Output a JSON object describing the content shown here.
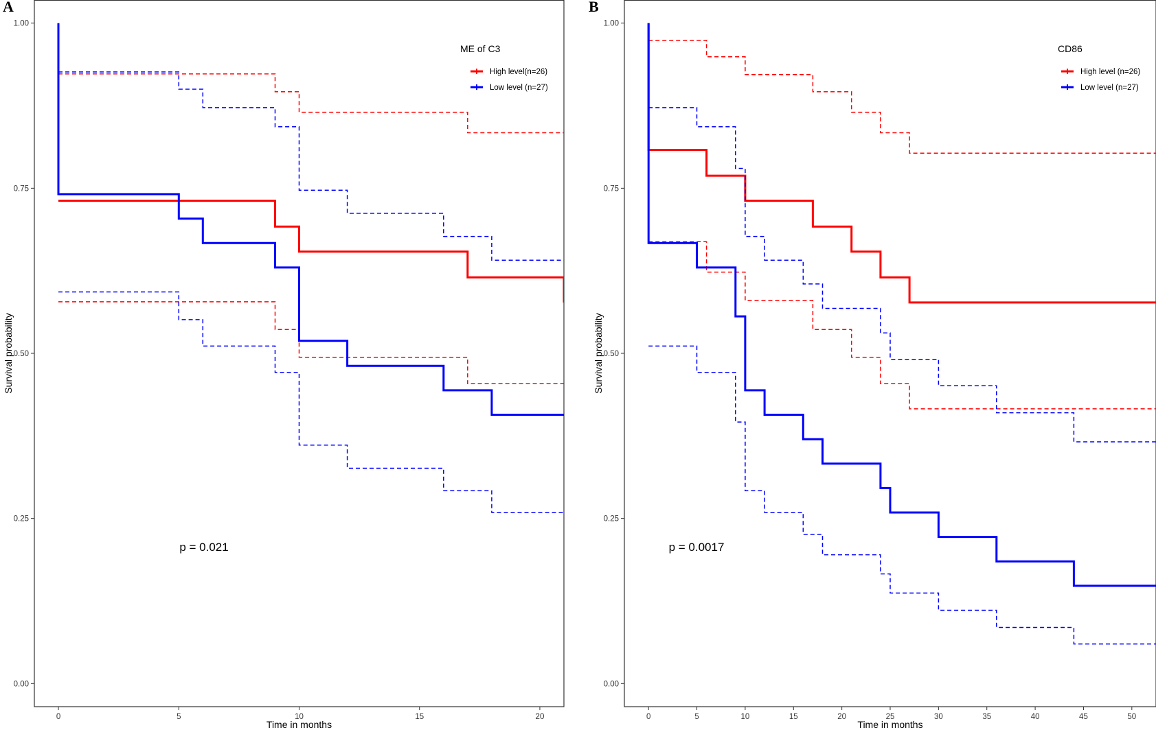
{
  "chart_data": [
    {
      "type": "line",
      "panel_label": "A",
      "xlabel": "Time in months",
      "ylabel": "Survival probability",
      "xlim": [
        -1,
        21
      ],
      "ylim": [
        -0.035,
        1.035
      ],
      "xticks": [
        0,
        5,
        10,
        15,
        20
      ],
      "yticks": [
        0.0,
        0.25,
        0.5,
        0.75,
        1.0
      ],
      "xtick_labels": [
        "0",
        "5",
        "10",
        "15",
        "20"
      ],
      "ytick_labels": [
        "0.00",
        "0.25",
        "0.50",
        "0.75",
        "1.00"
      ],
      "grid": false,
      "legend": {
        "title": "ME  of C3",
        "position": "top-right",
        "entries": [
          "High level(n=26)",
          "Low level (n=27)"
        ]
      },
      "annotation": "p = 0.021",
      "series": [
        {
          "name": "High level(n=26)",
          "color": "#ff0000",
          "style": "solid",
          "x": [
            0,
            9,
            10,
            17,
            21
          ],
          "y": [
            0.731,
            0.692,
            0.654,
            0.615,
            0.577
          ]
        },
        {
          "name": "High level(n=26) upper CI",
          "color": "#ff0000",
          "style": "dashed",
          "x": [
            0,
            9,
            10,
            17,
            21
          ],
          "y": [
            0.923,
            0.896,
            0.865,
            0.834,
            0.834
          ]
        },
        {
          "name": "High level(n=26) lower CI",
          "color": "#ff0000",
          "style": "dashed",
          "x": [
            0,
            9,
            10,
            17,
            21
          ],
          "y": [
            0.578,
            0.536,
            0.494,
            0.454,
            0.454
          ]
        },
        {
          "name": "Low level (n=27)",
          "color": "#0000ff",
          "style": "solid",
          "x": [
            0,
            0,
            5,
            6,
            9,
            10,
            12,
            16,
            18,
            21
          ],
          "y": [
            1.0,
            0.741,
            0.704,
            0.667,
            0.63,
            0.519,
            0.481,
            0.444,
            0.407,
            0.407
          ]
        },
        {
          "name": "Low level (n=27) upper CI",
          "color": "#0000ff",
          "style": "dashed",
          "x": [
            0,
            5,
            6,
            9,
            10,
            12,
            16,
            18,
            21
          ],
          "y": [
            0.926,
            0.9,
            0.872,
            0.843,
            0.747,
            0.712,
            0.677,
            0.641,
            0.641
          ]
        },
        {
          "name": "Low level (n=27) lower CI",
          "color": "#0000ff",
          "style": "dashed",
          "x": [
            0,
            5,
            6,
            9,
            10,
            12,
            16,
            18,
            21
          ],
          "y": [
            0.593,
            0.551,
            0.511,
            0.471,
            0.361,
            0.326,
            0.292,
            0.259,
            0.259
          ]
        }
      ]
    },
    {
      "type": "line",
      "panel_label": "B",
      "xlabel": "Time in months",
      "ylabel": "Survival probability",
      "xlim": [
        -2.5,
        52.5
      ],
      "ylim": [
        -0.035,
        1.035
      ],
      "xticks": [
        0,
        5,
        10,
        15,
        20,
        25,
        30,
        35,
        40,
        45,
        50
      ],
      "yticks": [
        0.0,
        0.25,
        0.5,
        0.75,
        1.0
      ],
      "xtick_labels": [
        "0",
        "5",
        "10",
        "15",
        "20",
        "25",
        "30",
        "35",
        "40",
        "45",
        "50"
      ],
      "ytick_labels": [
        "0.00",
        "0.25",
        "0.50",
        "0.75",
        "1.00"
      ],
      "grid": false,
      "legend": {
        "title": "CD86",
        "position": "top-right",
        "entries": [
          "High level (n=26)",
          "Low level (n=27)"
        ]
      },
      "annotation": "p = 0.0017",
      "series": [
        {
          "name": "High level (n=26)",
          "color": "#ff0000",
          "style": "solid",
          "x": [
            0,
            0,
            6,
            10,
            17,
            21,
            24,
            27,
            52.5
          ],
          "y": [
            1.0,
            0.808,
            0.769,
            0.731,
            0.692,
            0.654,
            0.615,
            0.577,
            0.577
          ]
        },
        {
          "name": "High level (n=26) upper CI",
          "color": "#ff0000",
          "style": "dashed",
          "x": [
            0,
            6,
            10,
            17,
            21,
            24,
            27,
            52.5
          ],
          "y": [
            0.974,
            0.949,
            0.922,
            0.896,
            0.865,
            0.834,
            0.803,
            0.803
          ]
        },
        {
          "name": "High level (n=26) lower CI",
          "color": "#ff0000",
          "style": "dashed",
          "x": [
            0,
            6,
            10,
            17,
            21,
            24,
            27,
            52.5
          ],
          "y": [
            0.669,
            0.623,
            0.58,
            0.536,
            0.494,
            0.454,
            0.416,
            0.416
          ]
        },
        {
          "name": "Low level (n=27)",
          "color": "#0000ff",
          "style": "solid",
          "x": [
            0,
            0,
            5,
            9,
            10,
            12,
            16,
            18,
            24,
            25,
            30,
            36,
            44,
            52.5
          ],
          "y": [
            1.0,
            0.667,
            0.63,
            0.556,
            0.444,
            0.407,
            0.37,
            0.333,
            0.296,
            0.259,
            0.222,
            0.185,
            0.148,
            0.148
          ]
        },
        {
          "name": "Low level (n=27) upper CI",
          "color": "#0000ff",
          "style": "dashed",
          "x": [
            0,
            5,
            9,
            10,
            12,
            16,
            18,
            24,
            25,
            30,
            36,
            44,
            52.5
          ],
          "y": [
            0.872,
            0.843,
            0.78,
            0.677,
            0.641,
            0.605,
            0.568,
            0.531,
            0.491,
            0.451,
            0.41,
            0.366,
            0.366
          ]
        },
        {
          "name": "Low level (n=27) lower CI",
          "color": "#0000ff",
          "style": "dashed",
          "x": [
            0,
            5,
            9,
            10,
            12,
            16,
            18,
            24,
            25,
            30,
            36,
            44,
            52.5
          ],
          "y": [
            0.511,
            0.471,
            0.396,
            0.292,
            0.259,
            0.226,
            0.195,
            0.166,
            0.137,
            0.111,
            0.085,
            0.06,
            0.06
          ]
        }
      ]
    }
  ]
}
